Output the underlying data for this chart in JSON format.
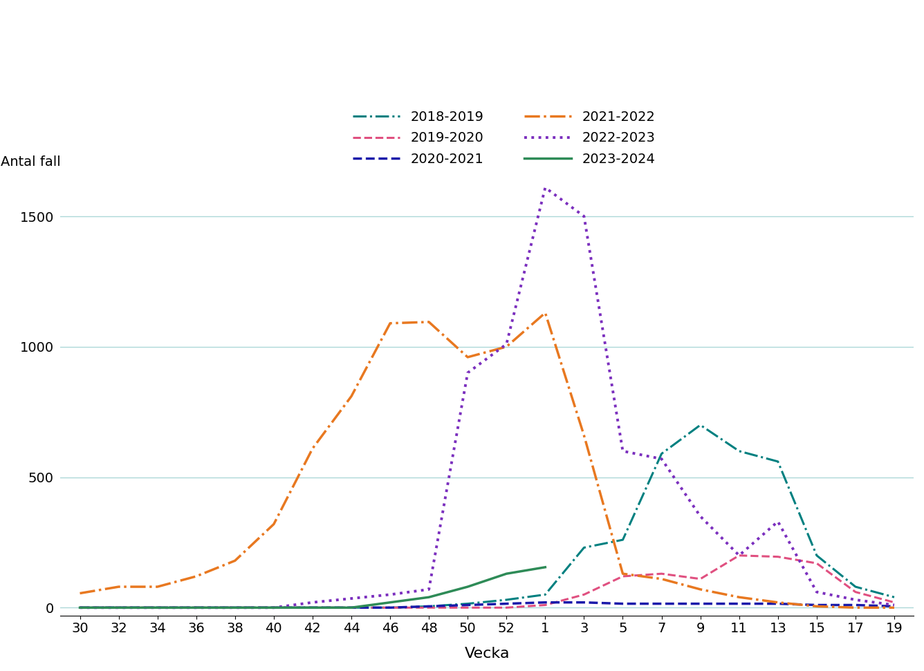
{
  "xlabel": "Vecka",
  "ylabel": "Antal fall",
  "ylim": [
    -30,
    1650
  ],
  "yticks": [
    0,
    500,
    1000,
    1500
  ],
  "x_labels": [
    "30",
    "32",
    "34",
    "36",
    "38",
    "40",
    "42",
    "44",
    "46",
    "48",
    "50",
    "52",
    "1",
    "3",
    "5",
    "7",
    "9",
    "11",
    "13",
    "15",
    "17",
    "19"
  ],
  "background_color": "#ffffff",
  "grid_color": "#add8d8",
  "series": [
    {
      "label": "2018-2019",
      "color": "#008080",
      "linestyle": "-.",
      "linewidth": 2.2,
      "values": [
        0,
        0,
        0,
        0,
        0,
        0,
        0,
        0,
        0,
        5,
        15,
        30,
        50,
        230,
        260,
        590,
        700,
        600,
        560,
        200,
        80,
        40
      ]
    },
    {
      "label": "2019-2020",
      "color": "#e05080",
      "linestyle": "--",
      "linewidth": 2.2,
      "values": [
        0,
        0,
        0,
        0,
        0,
        0,
        0,
        0,
        0,
        0,
        0,
        0,
        10,
        50,
        120,
        130,
        110,
        200,
        195,
        170,
        60,
        20
      ]
    },
    {
      "label": "2020-2021",
      "color": "#1a1aaa",
      "linestyle": "--",
      "linewidth": 2.5,
      "values": [
        0,
        0,
        0,
        0,
        0,
        0,
        0,
        0,
        0,
        5,
        10,
        15,
        20,
        20,
        15,
        15,
        15,
        15,
        15,
        10,
        10,
        5
      ]
    },
    {
      "label": "2021-2022",
      "color": "#e87820",
      "linestyle": "-.",
      "linewidth": 2.5,
      "values": [
        55,
        80,
        80,
        120,
        180,
        320,
        610,
        810,
        1090,
        1095,
        960,
        1000,
        1130,
        660,
        130,
        110,
        70,
        40,
        20,
        5,
        0,
        0
      ]
    },
    {
      "label": "2022-2023",
      "color": "#7b2fbe",
      "linestyle": ":",
      "linewidth": 2.8,
      "values": [
        0,
        0,
        0,
        0,
        0,
        0,
        20,
        35,
        50,
        70,
        900,
        1010,
        1610,
        1500,
        600,
        570,
        350,
        200,
        330,
        60,
        30,
        10
      ]
    },
    {
      "label": "2023-2024",
      "color": "#2e8b57",
      "linestyle": "-",
      "linewidth": 2.5,
      "values": [
        0,
        0,
        0,
        0,
        0,
        0,
        0,
        0,
        20,
        40,
        80,
        130,
        155,
        null,
        null,
        null,
        null,
        null,
        null,
        null,
        null,
        null
      ]
    }
  ],
  "legend_order": [
    0,
    1,
    2,
    3,
    4,
    5
  ]
}
